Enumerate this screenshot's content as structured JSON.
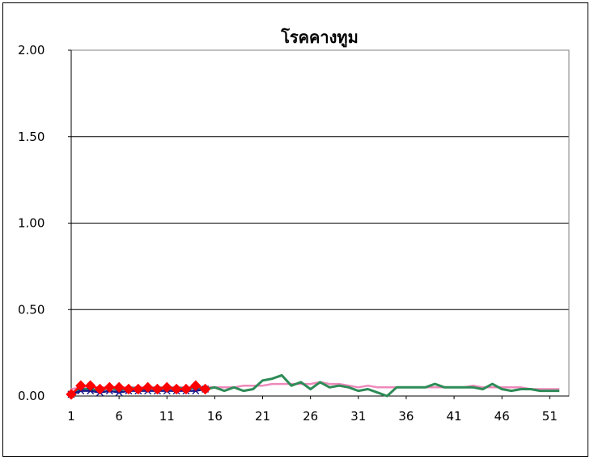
{
  "chart_data": {
    "type": "line",
    "title": "โรคคางทูม",
    "xlabel": "",
    "ylabel": "",
    "ylim": [
      0,
      2.0
    ],
    "yticks": [
      "0.00",
      "0.50",
      "1.00",
      "1.50",
      "2.00"
    ],
    "ytick_values": [
      0,
      0.5,
      1.0,
      1.5,
      2.0
    ],
    "xticks": [
      "1",
      "6",
      "11",
      "16",
      "21",
      "26",
      "31",
      "36",
      "41",
      "46",
      "51"
    ],
    "xtick_values": [
      1,
      6,
      11,
      16,
      21,
      26,
      31,
      36,
      41,
      46,
      51
    ],
    "xlim": [
      1,
      53
    ],
    "grid": "horizontal",
    "legend": "none",
    "series": [
      {
        "color": "#ee88bb",
        "marker": "none",
        "x": [
          1,
          2,
          3,
          4,
          5,
          6,
          7,
          8,
          9,
          10,
          11,
          12,
          13,
          14,
          15,
          16,
          17,
          18,
          19,
          20,
          21,
          22,
          23,
          24,
          25,
          26,
          27,
          28,
          29,
          30,
          31,
          32,
          33,
          34,
          35,
          36,
          37,
          38,
          39,
          40,
          41,
          42,
          43,
          44,
          45,
          46,
          47,
          48,
          49,
          50,
          51,
          52
        ],
        "values": [
          0.04,
          0.05,
          0.05,
          0.05,
          0.05,
          0.05,
          0.05,
          0.05,
          0.05,
          0.05,
          0.05,
          0.05,
          0.05,
          0.05,
          0.05,
          0.05,
          0.05,
          0.05,
          0.06,
          0.06,
          0.06,
          0.07,
          0.07,
          0.07,
          0.07,
          0.07,
          0.08,
          0.07,
          0.07,
          0.06,
          0.05,
          0.06,
          0.05,
          0.05,
          0.05,
          0.05,
          0.05,
          0.05,
          0.05,
          0.05,
          0.05,
          0.05,
          0.06,
          0.05,
          0.05,
          0.05,
          0.05,
          0.05,
          0.04,
          0.04,
          0.04,
          0.04
        ]
      },
      {
        "color": "#2e8b57",
        "marker": "none",
        "x": [
          1,
          2,
          3,
          4,
          5,
          6,
          7,
          8,
          9,
          10,
          11,
          12,
          13,
          14,
          15,
          16,
          17,
          18,
          19,
          20,
          21,
          22,
          23,
          24,
          25,
          26,
          27,
          28,
          29,
          30,
          31,
          32,
          33,
          34,
          35,
          36,
          37,
          38,
          39,
          40,
          41,
          42,
          43,
          44,
          45,
          46,
          47,
          48,
          49,
          50,
          51,
          52
        ],
        "values": [
          0.01,
          0.04,
          0.04,
          0.03,
          0.05,
          0.03,
          0.05,
          0.04,
          0.04,
          0.05,
          0.04,
          0.05,
          0.04,
          0.05,
          0.04,
          0.05,
          0.03,
          0.05,
          0.03,
          0.04,
          0.09,
          0.1,
          0.12,
          0.06,
          0.08,
          0.04,
          0.08,
          0.05,
          0.06,
          0.05,
          0.03,
          0.04,
          0.02,
          0.0,
          0.05,
          0.05,
          0.05,
          0.05,
          0.07,
          0.05,
          0.05,
          0.05,
          0.05,
          0.04,
          0.07,
          0.04,
          0.03,
          0.04,
          0.04,
          0.03,
          0.03,
          0.03
        ]
      },
      {
        "color": "#1a1a8c",
        "marker": "x",
        "x": [
          1,
          2,
          3,
          4,
          5,
          6,
          7,
          8,
          9,
          10,
          11,
          12,
          13,
          14,
          15
        ],
        "values": [
          0.01,
          0.03,
          0.03,
          0.02,
          0.03,
          0.02,
          0.03,
          0.03,
          0.03,
          0.03,
          0.03,
          0.03,
          0.03,
          0.03,
          0.04
        ]
      },
      {
        "color": "#ff0000",
        "marker": "diamond",
        "x": [
          1,
          2,
          3,
          4,
          5,
          6,
          7,
          8,
          9,
          10,
          11,
          12,
          13,
          14,
          15
        ],
        "values": [
          0.01,
          0.06,
          0.06,
          0.04,
          0.05,
          0.05,
          0.04,
          0.04,
          0.05,
          0.04,
          0.05,
          0.04,
          0.04,
          0.06,
          0.04
        ]
      }
    ]
  }
}
